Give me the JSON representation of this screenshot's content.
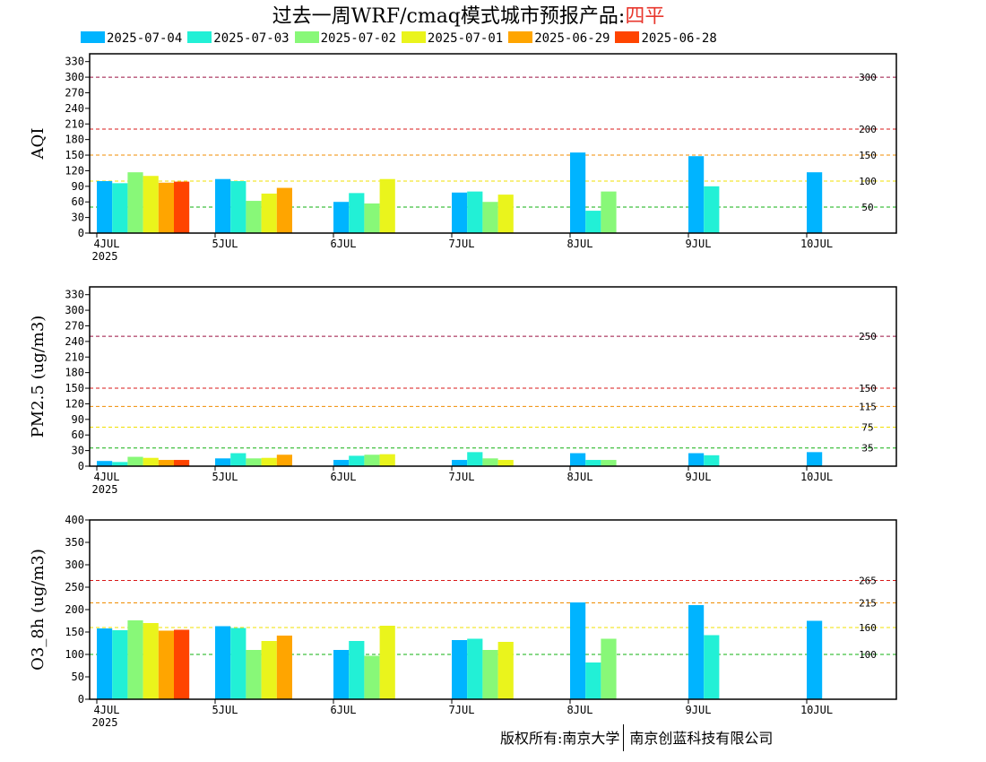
{
  "title": {
    "prefix": "过去一周WRF/cmaq模式城市预报产品:",
    "city": "四平"
  },
  "colors": {
    "2025-07-04": "#00b4ff",
    "2025-07-03": "#22f0d6",
    "2025-07-02": "#88f878",
    "2025-07-01": "#eaf41c",
    "2025-06-29": "#ffa500",
    "2025-06-28": "#ff4400"
  },
  "footer": {
    "left": "版权所有:南京大学",
    "right": "南京创蓝科技有限公司"
  },
  "chart_data": [
    {
      "type": "bar",
      "ylabel": "AQI",
      "ylim": [
        0,
        345
      ],
      "yticks": [
        0,
        30,
        60,
        90,
        120,
        150,
        180,
        210,
        240,
        270,
        300,
        330
      ],
      "categories": [
        "4JUL",
        "5JUL",
        "6JUL",
        "7JUL",
        "8JUL",
        "9JUL",
        "10JUL"
      ],
      "first_tick_sublabel": "2025",
      "thresholds": [
        {
          "value": 300,
          "label": "300",
          "color": "#9a1040"
        },
        {
          "value": 200,
          "label": "200",
          "color": "#d81818"
        },
        {
          "value": 150,
          "label": "150",
          "color": "#f08c00"
        },
        {
          "value": 100,
          "label": "100",
          "color": "#f0e000"
        },
        {
          "value": 50,
          "label": "50",
          "color": "#10b010"
        }
      ],
      "series": [
        {
          "name": "2025-07-04",
          "values": [
            100,
            104,
            60,
            78,
            155,
            148,
            117
          ]
        },
        {
          "name": "2025-07-03",
          "values": [
            96,
            100,
            77,
            80,
            43,
            90,
            null
          ]
        },
        {
          "name": "2025-07-02",
          "values": [
            117,
            62,
            57,
            60,
            80,
            null,
            null
          ]
        },
        {
          "name": "2025-07-01",
          "values": [
            110,
            76,
            104,
            74,
            null,
            null,
            null
          ]
        },
        {
          "name": "2025-06-29",
          "values": [
            97,
            87,
            null,
            null,
            null,
            null,
            null
          ]
        },
        {
          "name": "2025-06-28",
          "values": [
            99,
            null,
            null,
            null,
            null,
            null,
            null
          ]
        }
      ]
    },
    {
      "type": "bar",
      "ylabel": "PM2.5 (ug/m3)",
      "ylim": [
        0,
        345
      ],
      "yticks": [
        0,
        30,
        60,
        90,
        120,
        150,
        180,
        210,
        240,
        270,
        300,
        330
      ],
      "categories": [
        "4JUL",
        "5JUL",
        "6JUL",
        "7JUL",
        "8JUL",
        "9JUL",
        "10JUL"
      ],
      "first_tick_sublabel": "2025",
      "thresholds": [
        {
          "value": 250,
          "label": "250",
          "color": "#9a1040"
        },
        {
          "value": 150,
          "label": "150",
          "color": "#d81818"
        },
        {
          "value": 115,
          "label": "115",
          "color": "#f08c00"
        },
        {
          "value": 75,
          "label": "75",
          "color": "#f0e000"
        },
        {
          "value": 35,
          "label": "35",
          "color": "#10b010"
        }
      ],
      "series": [
        {
          "name": "2025-07-04",
          "values": [
            10,
            15,
            12,
            12,
            25,
            25,
            27
          ]
        },
        {
          "name": "2025-07-03",
          "values": [
            8,
            25,
            20,
            27,
            12,
            21,
            null
          ]
        },
        {
          "name": "2025-07-02",
          "values": [
            18,
            15,
            22,
            15,
            12,
            null,
            null
          ]
        },
        {
          "name": "2025-07-01",
          "values": [
            16,
            16,
            23,
            12,
            null,
            null,
            null
          ]
        },
        {
          "name": "2025-06-29",
          "values": [
            12,
            22,
            null,
            null,
            null,
            null,
            null
          ]
        },
        {
          "name": "2025-06-28",
          "values": [
            12,
            null,
            null,
            null,
            null,
            null,
            null
          ]
        }
      ]
    },
    {
      "type": "bar",
      "ylabel": "O3_8h (ug/m3)",
      "ylim": [
        0,
        400
      ],
      "yticks": [
        0,
        50,
        100,
        150,
        200,
        250,
        300,
        350,
        400
      ],
      "categories": [
        "4JUL",
        "5JUL",
        "6JUL",
        "7JUL",
        "8JUL",
        "9JUL",
        "10JUL"
      ],
      "first_tick_sublabel": "2025",
      "thresholds": [
        {
          "value": 265,
          "label": "265",
          "color": "#d81818"
        },
        {
          "value": 215,
          "label": "215",
          "color": "#f08c00"
        },
        {
          "value": 160,
          "label": "160",
          "color": "#f0e000"
        },
        {
          "value": 100,
          "label": "100",
          "color": "#10b010"
        }
      ],
      "series": [
        {
          "name": "2025-07-04",
          "values": [
            158,
            163,
            110,
            132,
            216,
            210,
            175
          ]
        },
        {
          "name": "2025-07-03",
          "values": [
            154,
            159,
            130,
            135,
            82,
            143,
            null
          ]
        },
        {
          "name": "2025-07-02",
          "values": [
            176,
            110,
            97,
            110,
            135,
            null,
            null
          ]
        },
        {
          "name": "2025-07-01",
          "values": [
            170,
            130,
            164,
            128,
            null,
            null,
            null
          ]
        },
        {
          "name": "2025-06-29",
          "values": [
            153,
            142,
            null,
            null,
            null,
            null,
            null
          ]
        },
        {
          "name": "2025-06-28",
          "values": [
            155,
            null,
            null,
            null,
            null,
            null,
            null
          ]
        }
      ]
    }
  ]
}
